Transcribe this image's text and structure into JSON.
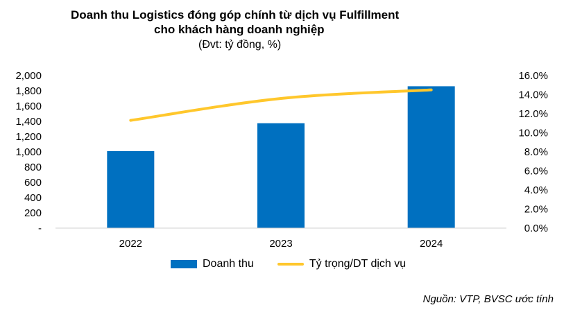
{
  "chart_data": {
    "type": "bar",
    "title": "Doanh thu Logistics đóng góp chính từ dịch vụ Fulfillment",
    "subtitle": "cho khách hàng doanh nghiệp",
    "unit_note": "(Đvt: tỷ đồng, %)",
    "categories": [
      "2022",
      "2023",
      "2024"
    ],
    "series": [
      {
        "name": "Doanh thu",
        "kind": "bar",
        "axis": "left",
        "color": "#0070C0",
        "values": [
          1010,
          1375,
          1860
        ]
      },
      {
        "name": "Tỷ trọng/DT dịch vụ",
        "kind": "line",
        "axis": "right",
        "color": "#FFC72C",
        "values": [
          11.3,
          13.6,
          14.5
        ]
      }
    ],
    "ylim_left": [
      0,
      2000
    ],
    "yticks_left": [
      "-",
      "200",
      "400",
      "600",
      "800",
      "1,000",
      "1,200",
      "1,400",
      "1,600",
      "1,800",
      "2,000"
    ],
    "ylim_right": [
      0,
      16
    ],
    "yticks_right": [
      "0.0%",
      "2.0%",
      "4.0%",
      "6.0%",
      "8.0%",
      "10.0%",
      "12.0%",
      "14.0%",
      "16.0%"
    ],
    "legend_position": "bottom",
    "grid": false
  },
  "source": "Nguồn: VTP, BVSC ước tính"
}
